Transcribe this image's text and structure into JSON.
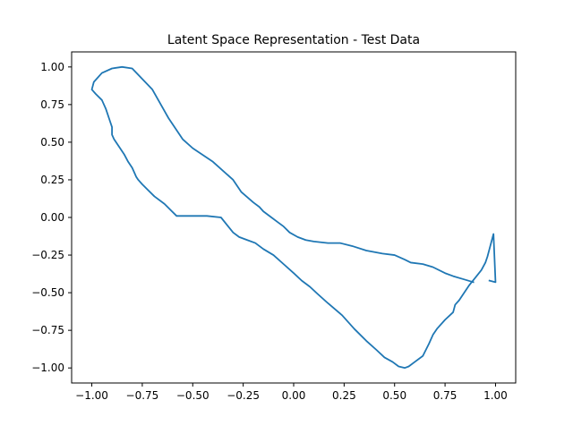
{
  "chart_data": {
    "type": "line",
    "title": "Latent Space Representation - Test Data",
    "xlabel": "",
    "ylabel": "",
    "xlim": [
      -1.1,
      1.1
    ],
    "ylim": [
      -1.1,
      1.1
    ],
    "xticks": [
      -1.0,
      -0.75,
      -0.5,
      -0.25,
      0.0,
      0.25,
      0.5,
      0.75,
      1.0
    ],
    "xtick_labels": [
      "−1.00",
      "−0.75",
      "−0.50",
      "−0.25",
      "0.00",
      "0.25",
      "0.50",
      "0.75",
      "1.00"
    ],
    "yticks": [
      1.0,
      0.75,
      0.5,
      0.25,
      0.0,
      -0.25,
      -0.5,
      -0.75,
      -1.0
    ],
    "ytick_labels": [
      "1.00",
      "0.75",
      "0.50",
      "0.25",
      "0.00",
      "−0.25",
      "−0.50",
      "−0.75",
      "−1.00"
    ],
    "grid": false,
    "series": [
      {
        "color": "#1f77b4",
        "x": [
          0.89,
          0.84,
          0.79,
          0.75,
          0.69,
          0.64,
          0.58,
          0.55,
          0.5,
          0.44,
          0.36,
          0.29,
          0.23,
          0.17,
          0.1,
          0.06,
          0.02,
          -0.02,
          -0.05,
          -0.08,
          -0.11,
          -0.15,
          -0.17,
          -0.2,
          -0.26,
          -0.3,
          -0.4,
          -0.5,
          -0.55,
          -0.62,
          -0.7,
          -0.8,
          -0.85,
          -0.9,
          -0.95,
          -0.99,
          -1.0,
          -0.98,
          -0.95,
          -0.93,
          -0.91,
          -0.9,
          -0.9,
          -0.89,
          -0.86,
          -0.84,
          -0.82,
          -0.8,
          -0.79,
          -0.78,
          -0.77,
          -0.75,
          -0.72,
          -0.69,
          -0.64,
          -0.61,
          -0.58,
          -0.51,
          -0.47,
          -0.43,
          -0.36,
          -0.33,
          -0.3,
          -0.27,
          -0.23,
          -0.19,
          -0.15,
          -0.1,
          -0.05,
          0.0,
          0.04,
          0.08,
          0.12,
          0.17,
          0.24,
          0.3,
          0.36,
          0.41,
          0.45,
          0.49,
          0.52,
          0.55,
          0.57,
          0.6,
          0.64,
          0.67,
          0.69,
          0.71,
          0.75,
          0.79,
          0.8,
          0.82,
          0.84,
          0.87,
          0.9,
          0.93,
          0.95,
          0.96,
          0.97,
          0.98,
          0.99,
          1.0,
          0.97
        ],
        "y": [
          -0.43,
          -0.41,
          -0.39,
          -0.37,
          -0.33,
          -0.31,
          -0.3,
          -0.28,
          -0.25,
          -0.24,
          -0.22,
          -0.19,
          -0.17,
          -0.17,
          -0.16,
          -0.15,
          -0.13,
          -0.1,
          -0.06,
          -0.03,
          0.0,
          0.04,
          0.07,
          0.1,
          0.17,
          0.25,
          0.37,
          0.46,
          0.52,
          0.66,
          0.85,
          0.99,
          1.0,
          0.99,
          0.96,
          0.9,
          0.85,
          0.82,
          0.78,
          0.72,
          0.64,
          0.6,
          0.55,
          0.52,
          0.46,
          0.42,
          0.37,
          0.33,
          0.3,
          0.27,
          0.25,
          0.22,
          0.18,
          0.14,
          0.09,
          0.05,
          0.01,
          0.01,
          0.01,
          0.01,
          0.0,
          -0.05,
          -0.1,
          -0.13,
          -0.15,
          -0.17,
          -0.21,
          -0.25,
          -0.31,
          -0.37,
          -0.42,
          -0.46,
          -0.51,
          -0.57,
          -0.65,
          -0.74,
          -0.82,
          -0.88,
          -0.93,
          -0.96,
          -0.99,
          -1.0,
          -0.99,
          -0.96,
          -0.92,
          -0.84,
          -0.78,
          -0.74,
          -0.68,
          -0.63,
          -0.58,
          -0.55,
          -0.51,
          -0.45,
          -0.4,
          -0.35,
          -0.3,
          -0.26,
          -0.21,
          -0.16,
          -0.11,
          -0.43,
          -0.42
        ]
      }
    ]
  }
}
